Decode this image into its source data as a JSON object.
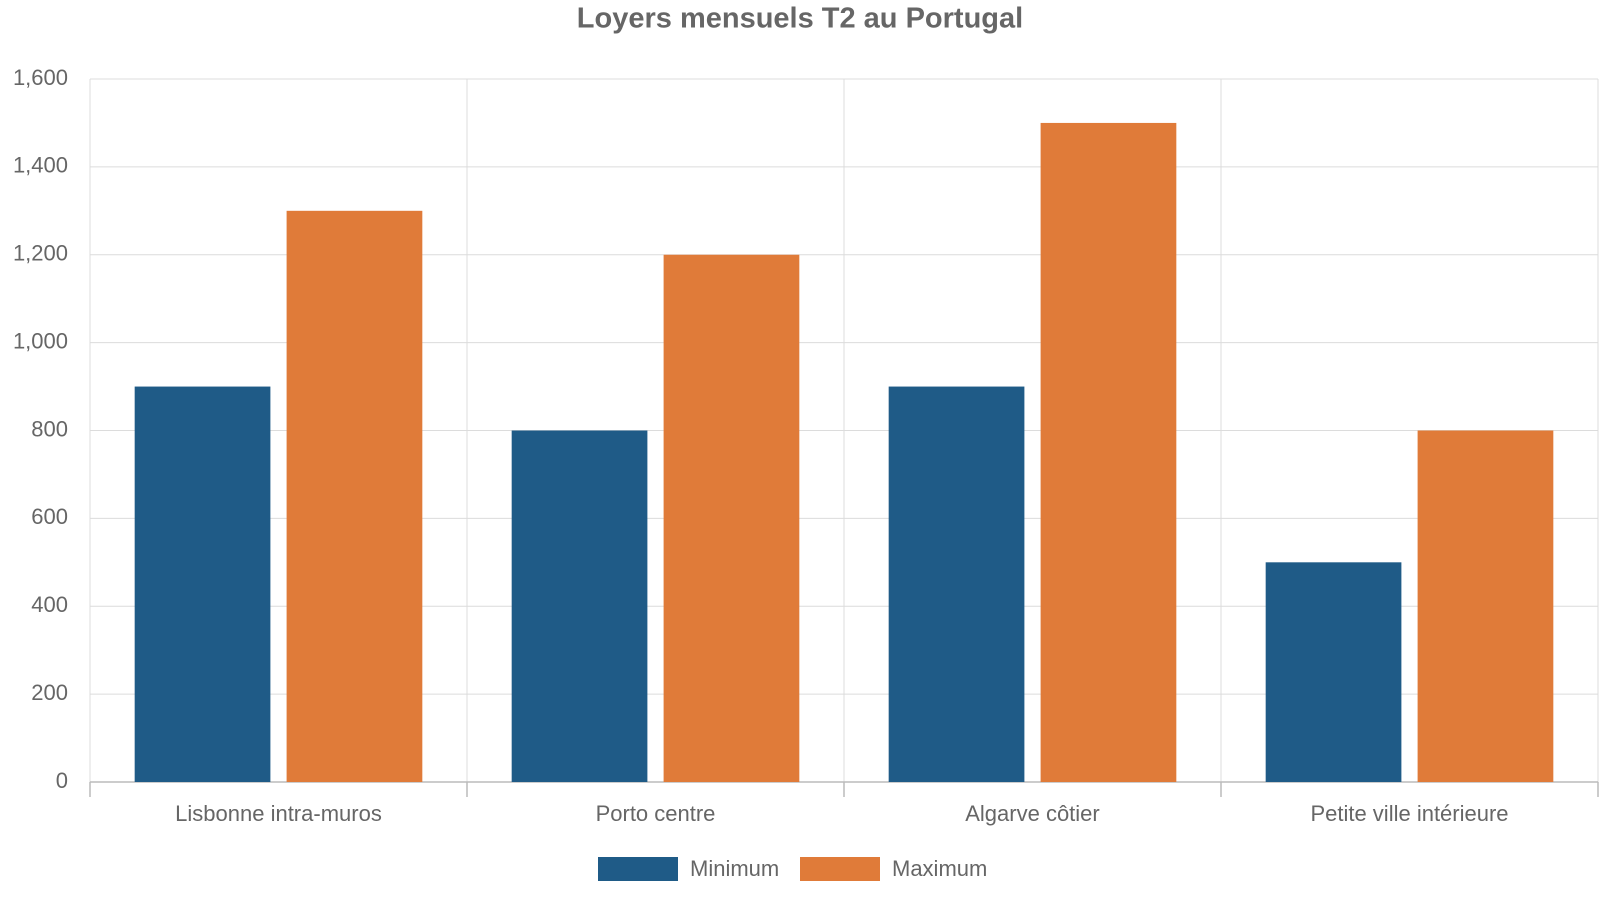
{
  "chart_data": {
    "type": "bar",
    "title": "Loyers mensuels T2 au Portugal",
    "categories": [
      "Lisbonne intra-muros",
      "Porto centre",
      "Algarve côtier",
      "Petite ville intérieure"
    ],
    "series": [
      {
        "name": "Minimum",
        "color": "#1f5b87",
        "values": [
          900,
          800,
          900,
          500
        ]
      },
      {
        "name": "Maximum",
        "color": "#e07b39",
        "values": [
          1300,
          1200,
          1500,
          800
        ]
      }
    ],
    "ylim": [
      0,
      1600
    ],
    "yticks": [
      0,
      200,
      400,
      600,
      800,
      {
        "value": 1000,
        "label": "1,000"
      },
      {
        "value": 1200,
        "label": "1,200"
      },
      {
        "value": 1400,
        "label": "1,400"
      },
      {
        "value": 1600,
        "label": "1,600"
      }
    ],
    "grid": true,
    "legend": "bottom"
  }
}
